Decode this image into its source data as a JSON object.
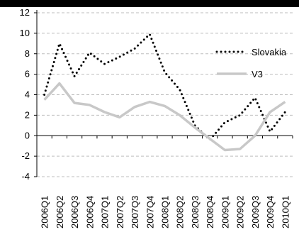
{
  "chart_data": {
    "type": "line",
    "title": "",
    "xlabel": "",
    "ylabel": "",
    "ylim": [
      -4,
      12
    ],
    "yticks": [
      -4,
      -2,
      0,
      2,
      4,
      6,
      8,
      10,
      12
    ],
    "grid": true,
    "legend_position": "right",
    "categories": [
      "2006Q1",
      "2006Q2",
      "2006Q3",
      "2006Q4",
      "2007Q1",
      "2007Q2",
      "2007Q3",
      "2007Q4",
      "2008Q1",
      "2008Q2",
      "2008Q3",
      "2008Q4",
      "2009Q1",
      "2009Q2",
      "2009Q3",
      "2009Q4",
      "2010Q1"
    ],
    "series": [
      {
        "name": "Slovakia",
        "style": "dotted",
        "color": "#000000",
        "values": [
          4.0,
          9.0,
          5.8,
          8.1,
          7.0,
          7.7,
          8.5,
          9.9,
          6.2,
          4.5,
          1.0,
          -0.4,
          1.3,
          2.0,
          3.7,
          0.4,
          2.3
        ]
      },
      {
        "name": "V3",
        "style": "solid",
        "color": "#c8c8c8",
        "values": [
          3.5,
          5.1,
          3.2,
          3.0,
          2.3,
          1.8,
          2.8,
          3.3,
          2.9,
          2.0,
          0.8,
          -0.3,
          -1.4,
          -1.3,
          0.0,
          2.3,
          3.3
        ]
      }
    ]
  }
}
